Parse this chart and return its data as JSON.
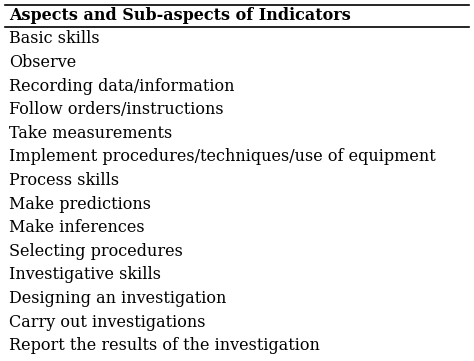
{
  "header": "Aspects and Sub-aspects of Indicators",
  "rows": [
    "Basic skills",
    "Observe",
    "Recording data/information",
    "Follow orders/instructions",
    "Take measurements",
    "Implement procedures/techniques/use of equipment",
    "Process skills",
    "Make predictions",
    "Make inferences",
    "Selecting procedures",
    "Investigative skills",
    "Designing an investigation",
    "Carry out investigations",
    "Report the results of the investigation"
  ],
  "header_fontsize": 11.5,
  "row_fontsize": 11.5,
  "bg_color": "#ffffff",
  "text_color": "#000000",
  "font_family": "DejaVu Serif"
}
